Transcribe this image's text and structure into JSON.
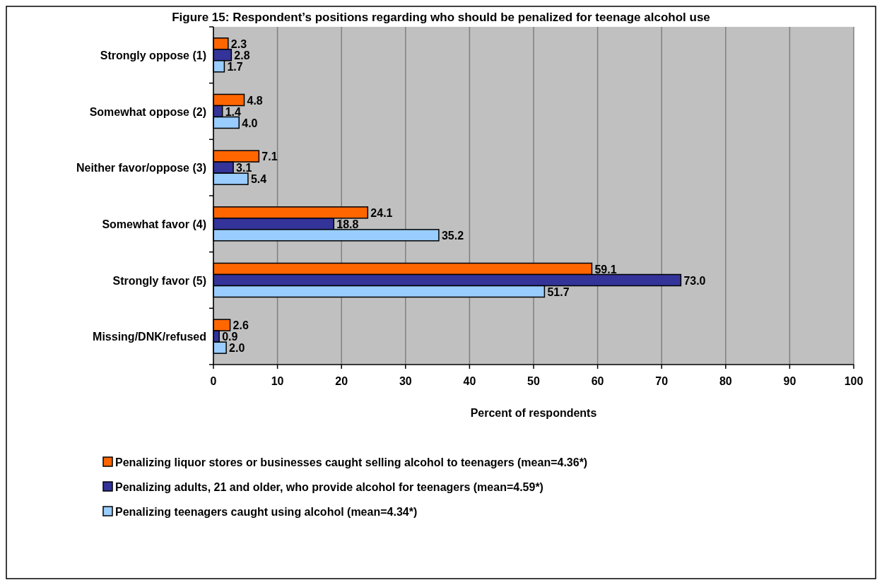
{
  "chart_data": {
    "type": "bar",
    "orientation": "horizontal",
    "title": "Figure 15: Respondent’s positions regarding who should be penalized for teenage alcohol use",
    "xlabel": "Percent of respondents",
    "categories": [
      "Strongly oppose (1)",
      "Somewhat oppose (2)",
      "Neither favor/oppose (3)",
      "Somewhat favor (4)",
      "Strongly favor (5)",
      "Missing/DNK/refused"
    ],
    "series": [
      {
        "name": "Penalizing liquor stores or businesses caught selling alcohol to teenagers (mean=4.36*)",
        "color": "#ff6600",
        "values": [
          2.3,
          4.8,
          7.1,
          24.1,
          59.1,
          2.6
        ],
        "value_labels": [
          "2.3",
          "4.8",
          "7.1",
          "24.1",
          "59.1",
          "2.6"
        ]
      },
      {
        "name": "Penalizing adults, 21 and older, who provide alcohol for teenagers (mean=4.59*)",
        "color": "#333399",
        "values": [
          2.8,
          1.4,
          3.1,
          18.8,
          73,
          0.9
        ],
        "value_labels": [
          "2.8",
          "1.4",
          "3.1",
          "18.8",
          "73.0",
          "0.9"
        ]
      },
      {
        "name": "Penalizing teenagers caught using alcohol (mean=4.34*)",
        "color": "#99ccff",
        "values": [
          1.7,
          4,
          5.4,
          35.2,
          51.7,
          2
        ],
        "value_labels": [
          "1.7",
          "4.0",
          "5.4",
          "35.2",
          "51.7",
          "2.0"
        ]
      }
    ],
    "xlim": [
      0,
      100
    ],
    "xticks": [
      0,
      10,
      20,
      30,
      40,
      50,
      60,
      70,
      80,
      90,
      100
    ],
    "grid": "x",
    "legend": "bottom"
  }
}
